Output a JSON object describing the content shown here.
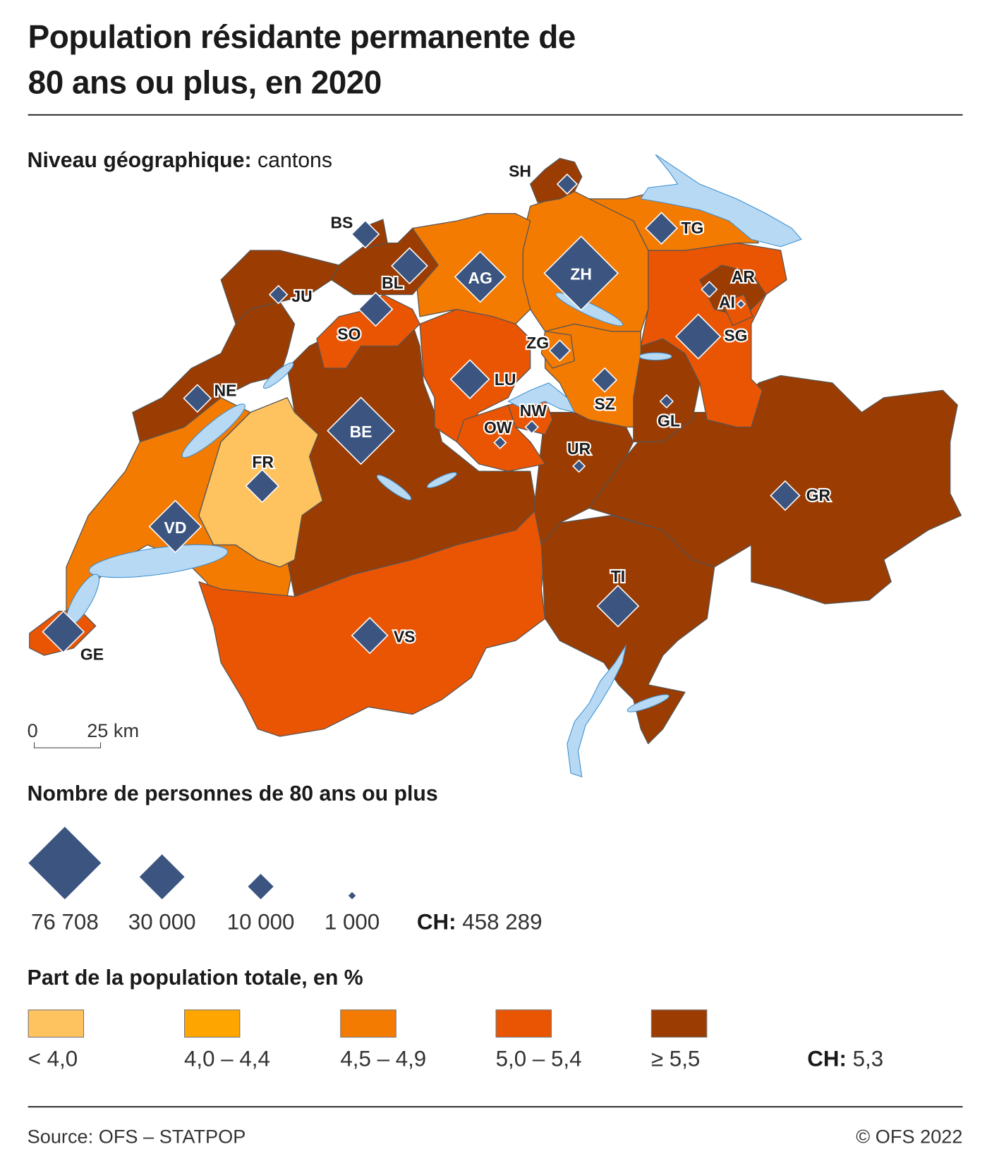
{
  "title_line1": "Population résidante permanente de",
  "title_line2": "80 ans ou plus, en 2020",
  "geo_level_label": "Niveau géographique:",
  "geo_level_value": "cantons",
  "scale_bar": {
    "zero": "0",
    "distance": "25 km"
  },
  "size_legend": {
    "title": "Nombre de personnes de 80 ans ou plus",
    "items": [
      {
        "value": 76708,
        "label": "76 708"
      },
      {
        "value": 30000,
        "label": "30 000"
      },
      {
        "value": 10000,
        "label": "10 000"
      },
      {
        "value": 1000,
        "label": "1 000"
      }
    ],
    "total_label": "CH:",
    "total_value": "458 289",
    "marker_color": "#3b5580"
  },
  "color_legend": {
    "title": "Part de la population totale, en %",
    "classes": [
      {
        "label": "< 4,0",
        "color": "#fec35f"
      },
      {
        "label": "4,0 – 4,4",
        "color": "#fea500"
      },
      {
        "label": "4,5 – 4,9",
        "color": "#f47b02"
      },
      {
        "label": "5,0 – 5,4",
        "color": "#ea5503"
      },
      {
        "label": "≥ 5,5",
        "color": "#9b3c02"
      }
    ],
    "total_label": "CH:",
    "total_value": "5,3"
  },
  "lake_color": "#b8d9f4",
  "cantons": [
    {
      "code": "VD",
      "class": 2,
      "count": 38000
    },
    {
      "code": "BE",
      "class": 4,
      "count": 63000
    },
    {
      "code": "VS",
      "class": 3,
      "count": 18000
    },
    {
      "code": "TI",
      "class": 4,
      "count": 24000
    },
    {
      "code": "GR",
      "class": 4,
      "count": 12000
    },
    {
      "code": "UR",
      "class": 4,
      "count": 2000
    },
    {
      "code": "GL",
      "class": 4,
      "count": 2300
    },
    {
      "code": "SG",
      "class": 3,
      "count": 28000
    },
    {
      "code": "AR",
      "class": 4,
      "count": 3400
    },
    {
      "code": "AI",
      "class": 3,
      "count": 900
    },
    {
      "code": "TG",
      "class": 2,
      "count": 14000
    },
    {
      "code": "ZH",
      "class": 2,
      "count": 76708
    },
    {
      "code": "SH",
      "class": 4,
      "count": 5500
    },
    {
      "code": "AG",
      "class": 2,
      "count": 36000
    },
    {
      "code": "SZ",
      "class": 2,
      "count": 8000
    },
    {
      "code": "ZG",
      "class": 2,
      "count": 6000
    },
    {
      "code": "LU",
      "class": 3,
      "count": 21000
    },
    {
      "code": "NW",
      "class": 3,
      "count": 2300
    },
    {
      "code": "OW",
      "class": 3,
      "count": 2000
    },
    {
      "code": "SO",
      "class": 3,
      "count": 16000
    },
    {
      "code": "BL",
      "class": 4,
      "count": 18000
    },
    {
      "code": "BS",
      "class": 4,
      "count": 10500
    },
    {
      "code": "JU",
      "class": 4,
      "count": 4500
    },
    {
      "code": "NE",
      "class": 4,
      "count": 10500
    },
    {
      "code": "FR",
      "class": 0,
      "count": 15000
    },
    {
      "code": "GE",
      "class": 3,
      "count": 24000
    }
  ],
  "source": "Source: OFS – STATPOP",
  "copyright": "© OFS 2022"
}
